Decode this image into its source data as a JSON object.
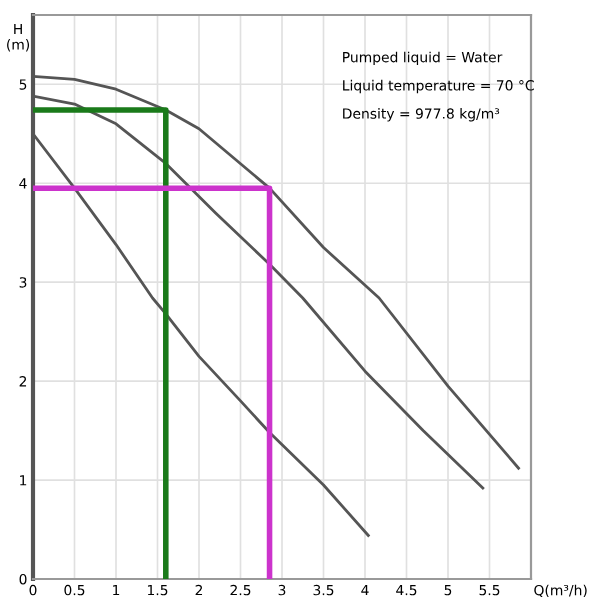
{
  "chart_data": {
    "type": "line",
    "xlabel": "Q(m³/h)",
    "ylabel": "H\n(m)",
    "xlim": [
      0,
      6
    ],
    "ylim": [
      0,
      5.7
    ],
    "xticks": [
      0,
      0.5,
      1,
      1.5,
      2,
      2.5,
      3,
      3.5,
      4,
      4.5,
      5,
      5.5
    ],
    "yticks": [
      0,
      1,
      2,
      3,
      4,
      5
    ],
    "grid": true,
    "marker": "none",
    "line_style": "solid",
    "annotations": [
      "Pumped liquid = Water",
      "Liquid temperature = 70 °C",
      "Density = 977.8 kg/m³"
    ],
    "series": [
      {
        "color": "#555555",
        "x": [
          0,
          0.5,
          1,
          1.6,
          2,
          2.85,
          3.5,
          4.17,
          5,
          5.85
        ],
        "values": [
          5.08,
          5.05,
          4.95,
          4.74,
          4.55,
          3.95,
          3.35,
          2.84,
          1.95,
          1.12
        ]
      },
      {
        "color": "#555555",
        "x": [
          0,
          0.5,
          1,
          1.6,
          2.2,
          2.85,
          3.25,
          4,
          4.7,
          5.42
        ],
        "values": [
          4.88,
          4.8,
          4.6,
          4.2,
          3.7,
          3.18,
          2.84,
          2.1,
          1.5,
          0.92
        ]
      },
      {
        "color": "#555555",
        "x": [
          0,
          0.5,
          1,
          1.44,
          1.6,
          2,
          2.5,
          2.85,
          3.5,
          4.04
        ],
        "values": [
          4.5,
          3.95,
          3.38,
          2.84,
          2.68,
          2.25,
          1.8,
          1.48,
          0.95,
          0.44
        ]
      },
      {
        "color": "#1a7a1a",
        "x": [
          0,
          1.6,
          1.6
        ],
        "values": [
          4.74,
          4.74,
          0
        ]
      },
      {
        "color": "#cc33cc",
        "x": [
          0,
          2.85,
          2.85
        ],
        "values": [
          3.95,
          3.95,
          0
        ]
      }
    ]
  }
}
